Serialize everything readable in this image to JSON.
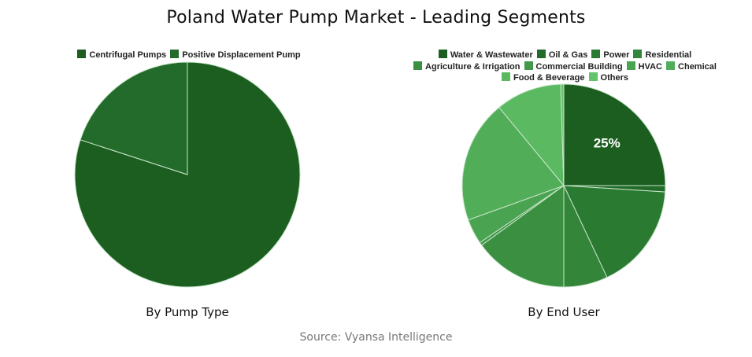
{
  "title": "Poland Water Pump Market - Leading Segments",
  "source": "Source: Vyansa Intelligence",
  "charts": {
    "left": {
      "caption": "By Pump Type",
      "legend": [
        {
          "label": "Centrifugal Pumps",
          "color": "#1b5e20"
        },
        {
          "label": "Positive Displacement Pump",
          "color": "#236b2b"
        }
      ]
    },
    "right": {
      "caption": "By End User",
      "slice_label": "25%",
      "legend": [
        {
          "label": "Water & Wastewater",
          "color": "#1b5e20"
        },
        {
          "label": "Oil & Gas",
          "color": "#236b2b"
        },
        {
          "label": "Power",
          "color": "#2b7a32"
        },
        {
          "label": "Residential",
          "color": "#33853a"
        },
        {
          "label": "Agriculture & Irrigation",
          "color": "#3b8f41"
        },
        {
          "label": "Commercial Building",
          "color": "#43994a"
        },
        {
          "label": "HVAC",
          "color": "#4aa351"
        },
        {
          "label": "Chemical",
          "color": "#52ad59"
        },
        {
          "label": "Food & Beverage",
          "color": "#5ab961"
        },
        {
          "label": "Others",
          "color": "#63c46a"
        }
      ]
    }
  },
  "chart_data": [
    {
      "type": "pie",
      "title": "By Pump Type",
      "categories": [
        "Centrifugal Pumps",
        "Positive Displacement Pump"
      ],
      "values": [
        80,
        20
      ],
      "legend_position": "top"
    },
    {
      "type": "pie",
      "title": "By End User",
      "categories": [
        "Water & Wastewater",
        "Oil & Gas",
        "Power",
        "Residential",
        "Agriculture & Irrigation",
        "Commercial Building",
        "HVAC",
        "Chemical",
        "Food & Beverage",
        "Others"
      ],
      "values": [
        25,
        1,
        17,
        7,
        15,
        0.5,
        4,
        19.5,
        10.5,
        0.5
      ],
      "annotations": [
        "25%"
      ],
      "legend_position": "top"
    }
  ]
}
